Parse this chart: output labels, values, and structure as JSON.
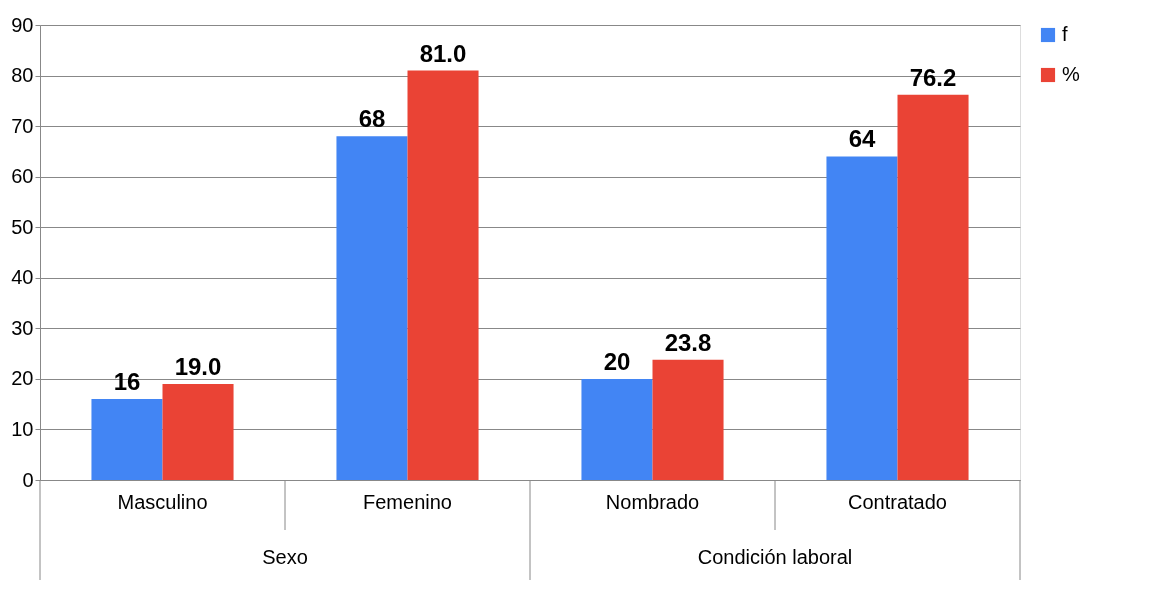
{
  "chart_data": {
    "type": "bar",
    "categories": [
      "Masculino",
      "Femenino",
      "Nombrado",
      "Contratado"
    ],
    "series": [
      {
        "name": "f",
        "color": "#4285f4",
        "values": [
          16,
          68,
          20,
          64
        ],
        "value_labels": [
          "16",
          "68",
          "20",
          "64"
        ]
      },
      {
        "name": "%",
        "color": "#ea4335",
        "values": [
          19.0,
          81.0,
          23.8,
          76.2
        ],
        "value_labels": [
          "19.0",
          "81.0",
          "23.8",
          "76.2"
        ]
      }
    ],
    "annotations": [
      "Sexo",
      "Condición laboral"
    ],
    "ylim": [
      0,
      90
    ],
    "yticks": [
      0,
      10,
      20,
      30,
      40,
      50,
      60,
      70,
      80,
      90
    ],
    "grid": "y",
    "legend": "right"
  }
}
